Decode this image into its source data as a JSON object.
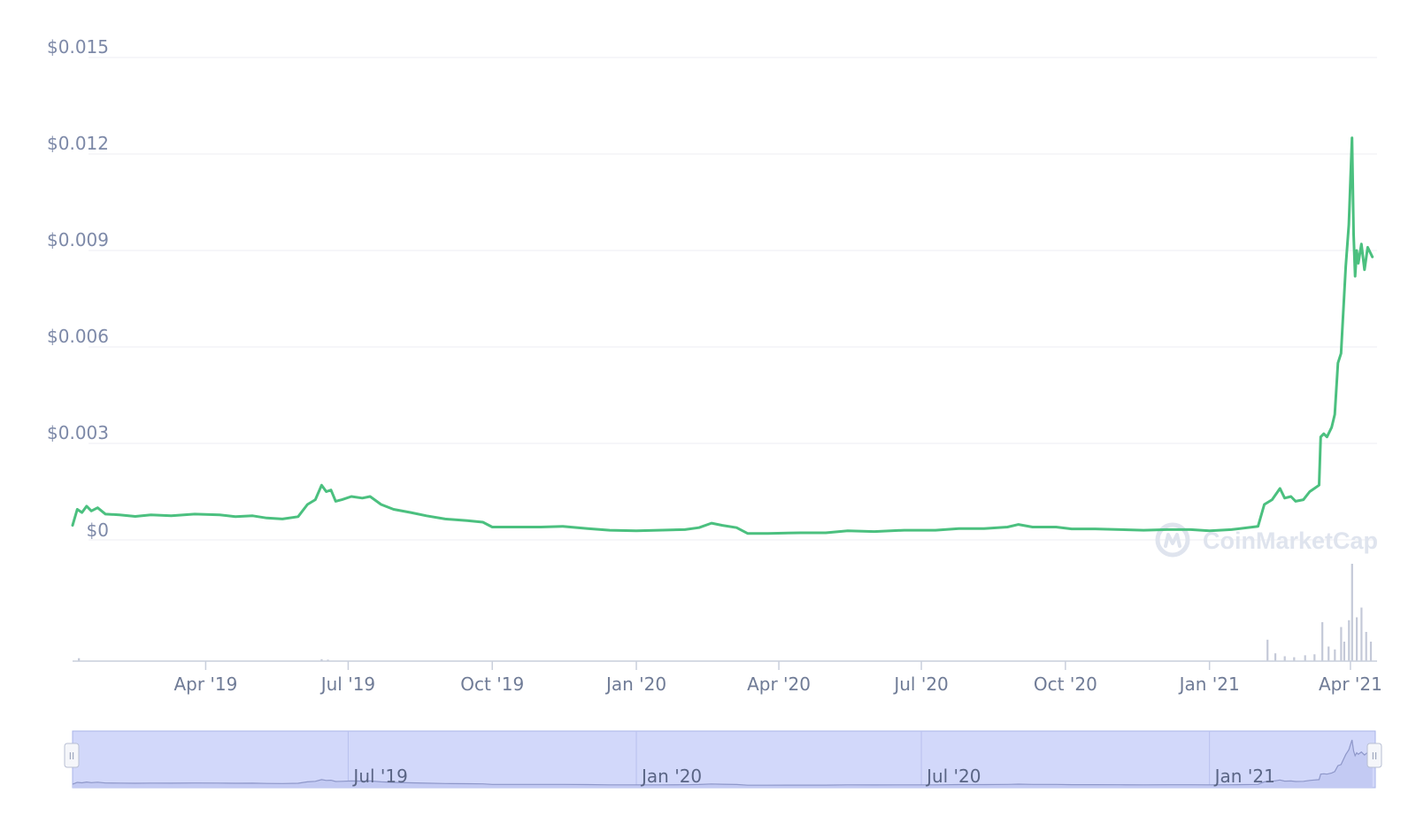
{
  "chart_data": {
    "type": "line",
    "y_axis": {
      "ylim": [
        0,
        0.015
      ],
      "tick_values": [
        0,
        0.003,
        0.006,
        0.009,
        0.012,
        0.015
      ],
      "tick_labels": [
        "$0",
        "$0.003",
        "$0.006",
        "$0.009",
        "$0.012",
        "$0.015"
      ]
    },
    "x_axis": {
      "xlim": [
        "2019-01-06",
        "2021-04-18"
      ],
      "ticks": [
        {
          "date": "2019-04-01",
          "label": "Apr '19"
        },
        {
          "date": "2019-07-01",
          "label": "Jul '19"
        },
        {
          "date": "2019-10-01",
          "label": "Oct '19"
        },
        {
          "date": "2020-01-01",
          "label": "Jan '20"
        },
        {
          "date": "2020-04-01",
          "label": "Apr '20"
        },
        {
          "date": "2020-07-01",
          "label": "Jul '20"
        },
        {
          "date": "2020-10-01",
          "label": "Oct '20"
        },
        {
          "date": "2021-01-01",
          "label": "Jan '21"
        },
        {
          "date": "2021-04-01",
          "label": "Apr '21"
        }
      ]
    },
    "grid": true,
    "legend": "none",
    "series": [
      {
        "line_color": "#4bc07f",
        "points": [
          [
            "2019-01-06",
            0.00045
          ],
          [
            "2019-01-09",
            0.00095
          ],
          [
            "2019-01-12",
            0.00085
          ],
          [
            "2019-01-15",
            0.00105
          ],
          [
            "2019-01-18",
            0.0009
          ],
          [
            "2019-01-22",
            0.001
          ],
          [
            "2019-01-27",
            0.0008
          ],
          [
            "2019-02-05",
            0.00078
          ],
          [
            "2019-02-15",
            0.00073
          ],
          [
            "2019-02-25",
            0.00078
          ],
          [
            "2019-03-10",
            0.00075
          ],
          [
            "2019-03-25",
            0.0008
          ],
          [
            "2019-04-10",
            0.00078
          ],
          [
            "2019-04-20",
            0.00072
          ],
          [
            "2019-05-01",
            0.00075
          ],
          [
            "2019-05-10",
            0.00068
          ],
          [
            "2019-05-20",
            0.00065
          ],
          [
            "2019-05-30",
            0.00072
          ],
          [
            "2019-06-05",
            0.0011
          ],
          [
            "2019-06-10",
            0.00125
          ],
          [
            "2019-06-14",
            0.0017
          ],
          [
            "2019-06-17",
            0.0015
          ],
          [
            "2019-06-20",
            0.00155
          ],
          [
            "2019-06-23",
            0.0012
          ],
          [
            "2019-06-27",
            0.00125
          ],
          [
            "2019-07-03",
            0.00135
          ],
          [
            "2019-07-10",
            0.0013
          ],
          [
            "2019-07-15",
            0.00135
          ],
          [
            "2019-07-22",
            0.0011
          ],
          [
            "2019-07-30",
            0.00095
          ],
          [
            "2019-08-10",
            0.00085
          ],
          [
            "2019-08-20",
            0.00075
          ],
          [
            "2019-09-01",
            0.00065
          ],
          [
            "2019-09-15",
            0.0006
          ],
          [
            "2019-09-25",
            0.00055
          ],
          [
            "2019-10-01",
            0.0004
          ],
          [
            "2019-10-15",
            0.0004
          ],
          [
            "2019-11-01",
            0.0004
          ],
          [
            "2019-11-15",
            0.00042
          ],
          [
            "2019-12-01",
            0.00035
          ],
          [
            "2019-12-15",
            0.0003
          ],
          [
            "2020-01-01",
            0.00028
          ],
          [
            "2020-01-15",
            0.0003
          ],
          [
            "2020-02-01",
            0.00032
          ],
          [
            "2020-02-10",
            0.00038
          ],
          [
            "2020-02-18",
            0.00052
          ],
          [
            "2020-02-25",
            0.00045
          ],
          [
            "2020-03-05",
            0.00038
          ],
          [
            "2020-03-12",
            0.0002
          ],
          [
            "2020-03-25",
            0.0002
          ],
          [
            "2020-04-15",
            0.00022
          ],
          [
            "2020-05-01",
            0.00022
          ],
          [
            "2020-05-15",
            0.00028
          ],
          [
            "2020-06-01",
            0.00026
          ],
          [
            "2020-06-20",
            0.0003
          ],
          [
            "2020-07-10",
            0.0003
          ],
          [
            "2020-07-25",
            0.00035
          ],
          [
            "2020-08-10",
            0.00035
          ],
          [
            "2020-08-25",
            0.0004
          ],
          [
            "2020-09-01",
            0.00048
          ],
          [
            "2020-09-10",
            0.0004
          ],
          [
            "2020-09-25",
            0.0004
          ],
          [
            "2020-10-05",
            0.00034
          ],
          [
            "2020-10-20",
            0.00034
          ],
          [
            "2020-11-05",
            0.00032
          ],
          [
            "2020-11-20",
            0.0003
          ],
          [
            "2020-12-05",
            0.00032
          ],
          [
            "2020-12-20",
            0.00032
          ],
          [
            "2021-01-01",
            0.00028
          ],
          [
            "2021-01-15",
            0.00032
          ],
          [
            "2021-02-01",
            0.00042
          ],
          [
            "2021-02-05",
            0.0011
          ],
          [
            "2021-02-10",
            0.00125
          ],
          [
            "2021-02-15",
            0.0016
          ],
          [
            "2021-02-18",
            0.0013
          ],
          [
            "2021-02-22",
            0.00135
          ],
          [
            "2021-02-25",
            0.0012
          ],
          [
            "2021-03-02",
            0.00125
          ],
          [
            "2021-03-06",
            0.0015
          ],
          [
            "2021-03-09",
            0.0016
          ],
          [
            "2021-03-12",
            0.0017
          ],
          [
            "2021-03-13",
            0.0032
          ],
          [
            "2021-03-15",
            0.0033
          ],
          [
            "2021-03-17",
            0.0032
          ],
          [
            "2021-03-20",
            0.0035
          ],
          [
            "2021-03-22",
            0.0039
          ],
          [
            "2021-03-24",
            0.0055
          ],
          [
            "2021-03-26",
            0.0058
          ],
          [
            "2021-03-29",
            0.0085
          ],
          [
            "2021-03-31",
            0.0098
          ],
          [
            "2021-04-02",
            0.0125
          ],
          [
            "2021-04-03",
            0.0095
          ],
          [
            "2021-04-04",
            0.0082
          ],
          [
            "2021-04-05",
            0.009
          ],
          [
            "2021-04-06",
            0.0086
          ],
          [
            "2021-04-08",
            0.0092
          ],
          [
            "2021-04-10",
            0.0084
          ],
          [
            "2021-04-12",
            0.0091
          ],
          [
            "2021-04-15",
            0.0088
          ]
        ]
      }
    ],
    "volume": {
      "color": "#c4c9d8",
      "bars": [
        [
          "2019-01-10",
          0.03
        ],
        [
          "2019-06-14",
          0.02
        ],
        [
          "2019-06-18",
          0.015
        ],
        [
          "2021-02-07",
          0.22
        ],
        [
          "2021-02-12",
          0.08
        ],
        [
          "2021-02-18",
          0.05
        ],
        [
          "2021-02-24",
          0.04
        ],
        [
          "2021-03-03",
          0.06
        ],
        [
          "2021-03-09",
          0.07
        ],
        [
          "2021-03-14",
          0.4
        ],
        [
          "2021-03-18",
          0.15
        ],
        [
          "2021-03-22",
          0.12
        ],
        [
          "2021-03-26",
          0.35
        ],
        [
          "2021-03-28",
          0.2
        ],
        [
          "2021-03-31",
          0.42
        ],
        [
          "2021-04-02",
          1.0
        ],
        [
          "2021-04-05",
          0.45
        ],
        [
          "2021-04-08",
          0.55
        ],
        [
          "2021-04-11",
          0.3
        ],
        [
          "2021-04-14",
          0.2
        ]
      ]
    }
  },
  "watermark": {
    "text": "CoinMarketCap"
  },
  "navigator": {
    "labels": [
      {
        "date": "2019-07-01",
        "label": "Jul '19"
      },
      {
        "date": "2020-01-01",
        "label": "Jan '20"
      },
      {
        "date": "2020-07-01",
        "label": "Jul '20"
      },
      {
        "date": "2021-01-01",
        "label": "Jan '21"
      }
    ],
    "handle_glyph": "II"
  }
}
